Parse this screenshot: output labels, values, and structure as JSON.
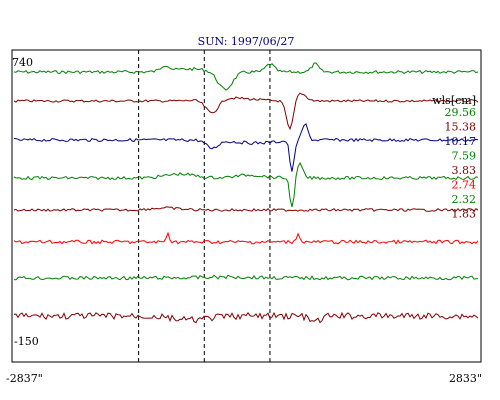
{
  "chart_data": {
    "type": "line",
    "title": "SUN: 1997/06/27",
    "xlabel": "",
    "ylabel": "",
    "x_range": [
      "-2837\"",
      "2833\""
    ],
    "y_top_label": "740",
    "y_bottom_label": "-150",
    "legend_title": "wls[cm]",
    "grid": false,
    "legend_position": "right",
    "markers": [
      0.27,
      0.41,
      0.55
    ],
    "series": [
      {
        "name": "29.56",
        "color": "#008000"
      },
      {
        "name": "15.38",
        "color": "#800000"
      },
      {
        "name": "10.17",
        "color": "#000080"
      },
      {
        "name": "7.59",
        "color": "#008000"
      },
      {
        "name": "3.83",
        "color": "#800000"
      },
      {
        "name": "2.74",
        "color": "#ff0000"
      },
      {
        "name": "2.32",
        "color": "#008000"
      },
      {
        "name": "1.83",
        "color": "#800000"
      }
    ]
  }
}
